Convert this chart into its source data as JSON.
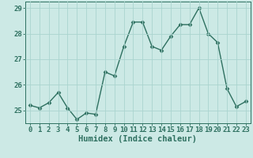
{
  "x": [
    0,
    1,
    2,
    3,
    4,
    5,
    6,
    7,
    8,
    9,
    10,
    11,
    12,
    13,
    14,
    15,
    16,
    17,
    18,
    19,
    20,
    21,
    22,
    23
  ],
  "y": [
    25.2,
    25.1,
    25.3,
    25.7,
    25.1,
    24.65,
    24.9,
    24.85,
    26.5,
    26.35,
    27.5,
    28.45,
    28.45,
    27.5,
    27.35,
    27.9,
    28.35,
    28.35,
    29.0,
    28.0,
    27.65,
    25.85,
    25.15,
    25.35
  ],
  "line_color": "#2e7060",
  "marker": "D",
  "marker_size": 2.5,
  "bg_color": "#cce9e5",
  "grid_color": "#aad4cf",
  "xlabel": "Humidex (Indice chaleur)",
  "ylim": [
    24.5,
    29.25
  ],
  "xlim": [
    -0.5,
    23.5
  ],
  "yticks": [
    25,
    26,
    27,
    28,
    29
  ],
  "xticks": [
    0,
    1,
    2,
    3,
    4,
    5,
    6,
    7,
    8,
    9,
    10,
    11,
    12,
    13,
    14,
    15,
    16,
    17,
    18,
    19,
    20,
    21,
    22,
    23
  ],
  "xlabel_fontsize": 7.5,
  "tick_fontsize": 6.5,
  "tick_color": "#2e7060",
  "linewidth": 1.0
}
